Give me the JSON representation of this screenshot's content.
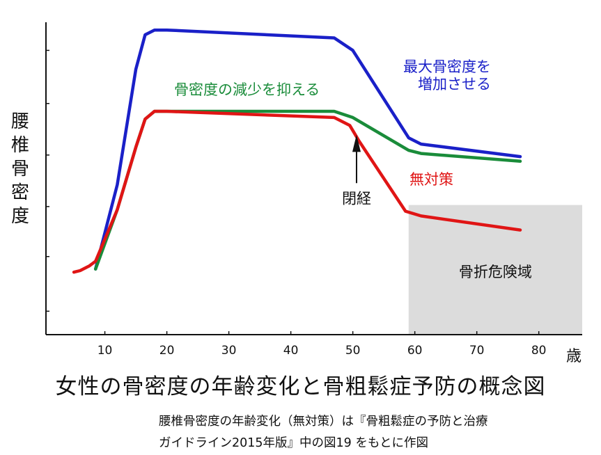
{
  "chart_data": {
    "type": "line",
    "title": "女性の骨密度の年齢変化と骨粗鬆症予防の概念図",
    "ylabel": "腰椎骨密度",
    "xlabel": "歳",
    "x_ticks": [
      10,
      20,
      30,
      40,
      50,
      60,
      70,
      80
    ],
    "xlim": [
      0.5,
      87
    ],
    "ylim": [
      0,
      100
    ],
    "grid": false,
    "series": [
      {
        "name": "最大骨密度を増加させる",
        "label_lines": [
          "最大骨密度を",
          "増加させる"
        ],
        "color": "#1a20c8",
        "x": [
          8.5,
          12,
          15,
          16.5,
          18,
          20,
          47,
          50,
          59,
          61,
          77
        ],
        "y": [
          21,
          48,
          85,
          96,
          97.5,
          97.5,
          95,
          91,
          63,
          61,
          57
        ]
      },
      {
        "name": "骨密度の減少を抑える",
        "color": "#1a8c3a",
        "x": [
          8.5,
          12,
          15,
          16.5,
          18,
          20,
          47,
          50,
          59,
          61,
          77
        ],
        "y": [
          21,
          40,
          60,
          69,
          71.5,
          71.5,
          71.5,
          69.5,
          59,
          58,
          55.5
        ]
      },
      {
        "name": "無対策",
        "color": "#e01515",
        "x": [
          5,
          6,
          7.5,
          8.5,
          12,
          15,
          16.5,
          18,
          20,
          47,
          49.5,
          51,
          58.5,
          61,
          77
        ],
        "y": [
          20,
          20.5,
          22,
          23.5,
          40,
          60,
          69,
          71.5,
          71.5,
          69.5,
          67,
          62,
          39.5,
          38,
          33.5
        ]
      }
    ],
    "annotations": {
      "menopause": "閉経",
      "risk_zone_label": "骨折危険域",
      "risk_zone": {
        "x_start": 59,
        "y_top": 41.5
      }
    },
    "source_note": [
      "腰椎骨密度の年齢変化（無対策）は『骨粗鬆症の予防と治療",
      "ガイドライン2015年版』中の図19 をもとに作図"
    ]
  }
}
